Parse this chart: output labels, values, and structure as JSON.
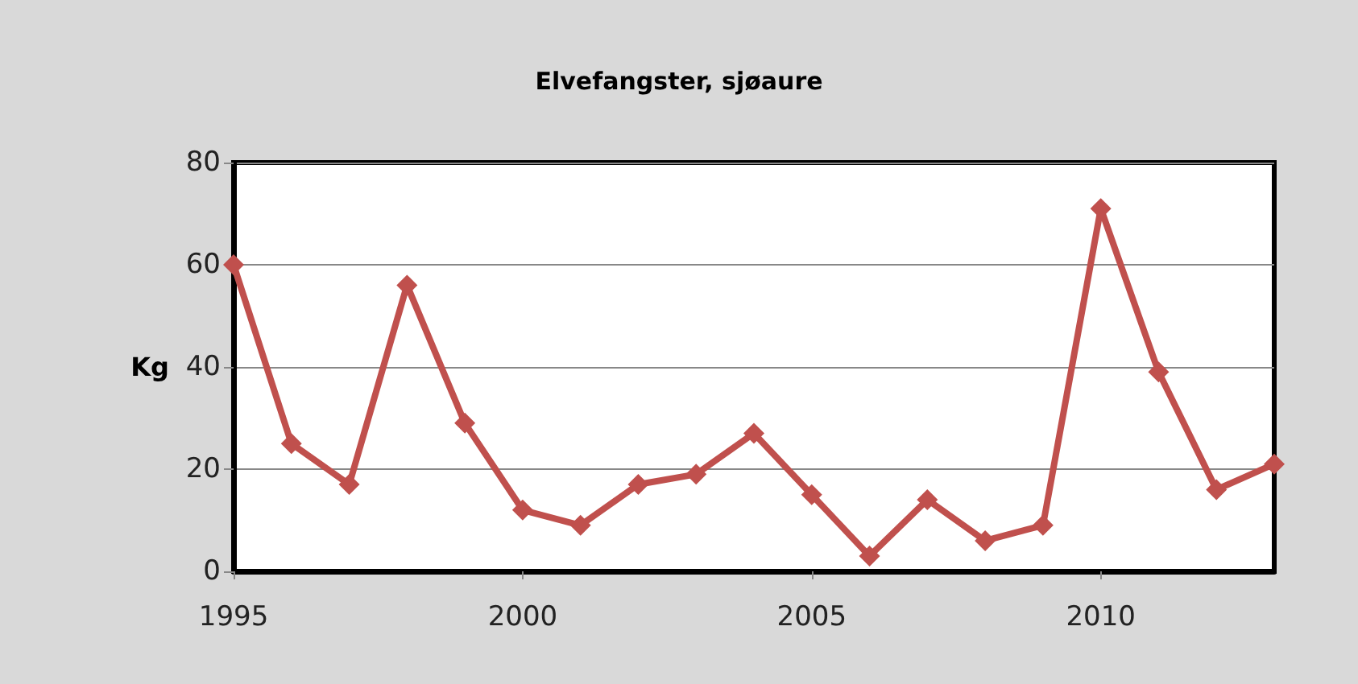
{
  "chart_data": {
    "type": "line",
    "title": "Elvefangster, sjøaure",
    "ylabel": "Kg",
    "x": [
      1995,
      1996,
      1997,
      1998,
      1999,
      2000,
      2001,
      2002,
      2003,
      2004,
      2005,
      2006,
      2007,
      2008,
      2009,
      2010,
      2011,
      2012,
      2013
    ],
    "series": [
      {
        "color": "#c0504d",
        "values": [
          60,
          25,
          17,
          56,
          29,
          12,
          9,
          17,
          19,
          27,
          15,
          3,
          14,
          6,
          9,
          71,
          39,
          16,
          21
        ]
      }
    ],
    "xlim": [
      1995,
      2013
    ],
    "xticks": [
      1995,
      2000,
      2005,
      2010
    ],
    "ylim": [
      0,
      80
    ],
    "yticks": [
      0,
      20,
      40,
      60,
      80
    ],
    "grid": "y",
    "marker": "diamond",
    "line_style": "solid"
  }
}
